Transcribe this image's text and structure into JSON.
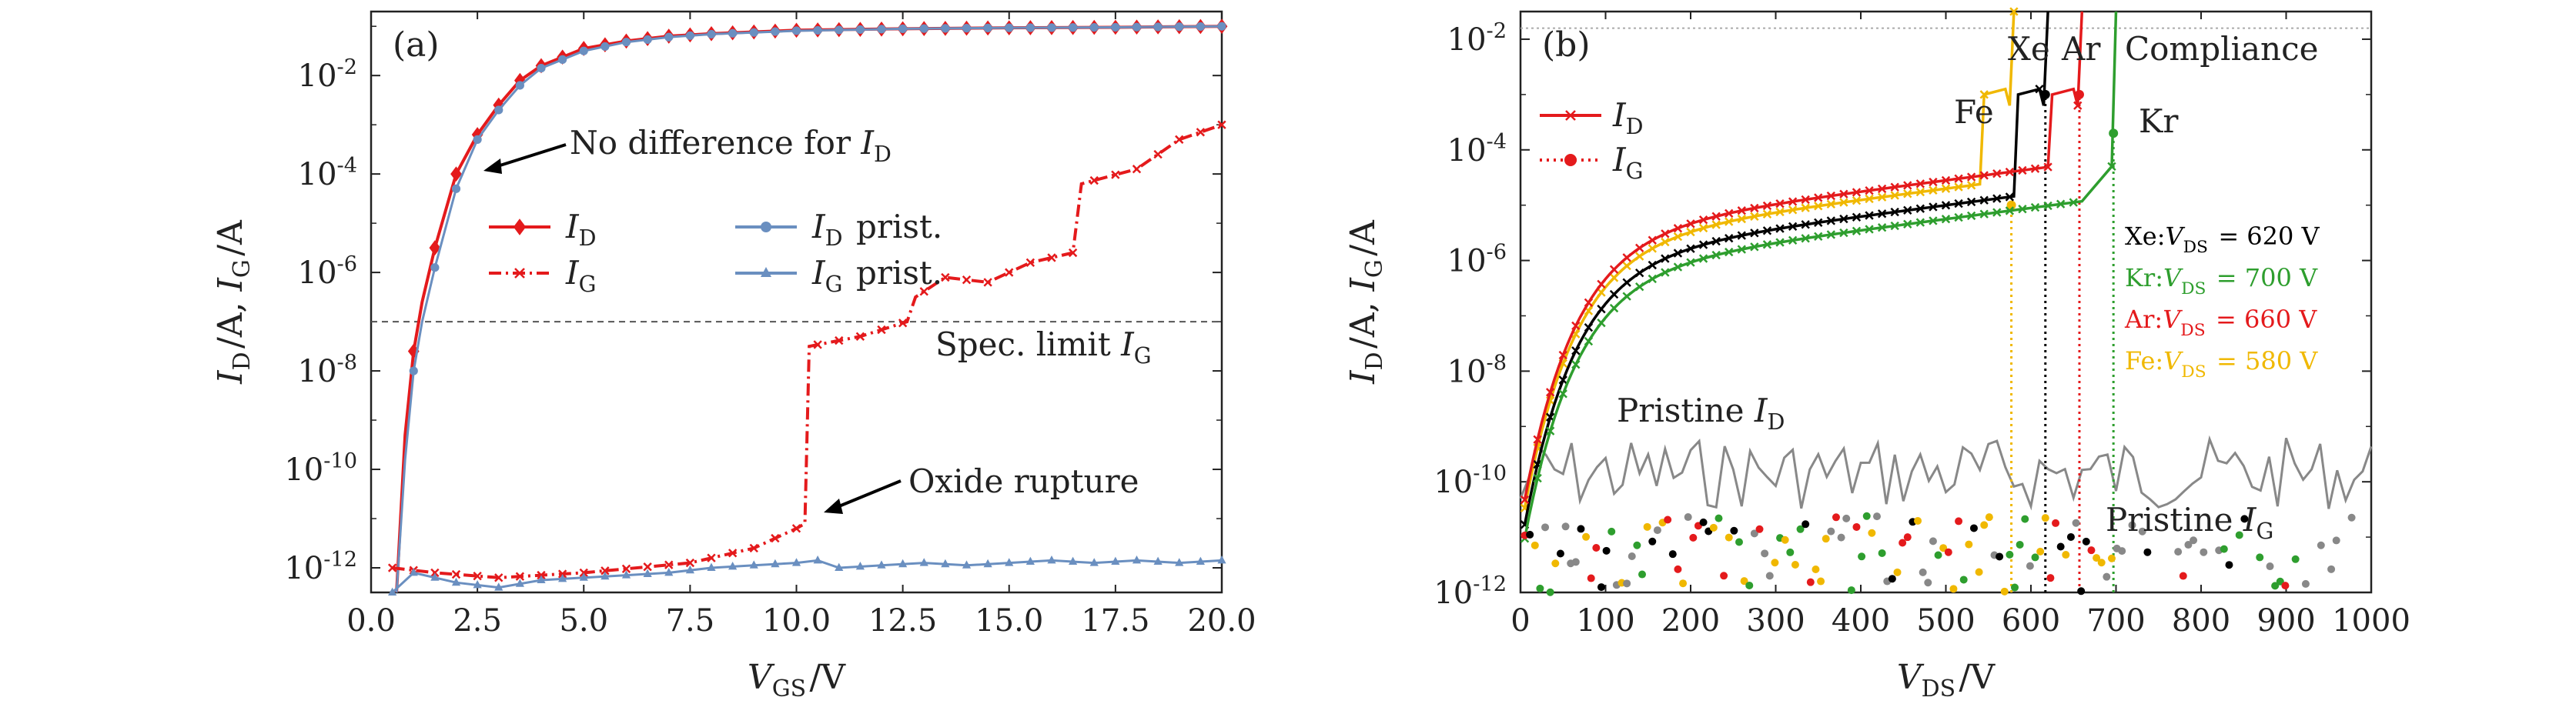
{
  "colors": {
    "red": "#e41a1c",
    "blue": "#6a8fc0",
    "black": "#000000",
    "green": "#2e9e2e",
    "gold": "#f0b800",
    "gray": "#888888",
    "darkgray": "#444444"
  },
  "chart_data": [
    {
      "panel": "(a)",
      "type": "line",
      "xlabel": "V_GS/V",
      "ylabel": "I_D/A, I_G/A",
      "xlim": [
        0,
        20
      ],
      "ylim_log10": [
        -12.5,
        -0.7
      ],
      "yscale": "log",
      "x_ticks": [
        "0.0",
        "2.5",
        "5.0",
        "7.5",
        "10.0",
        "12.5",
        "15.0",
        "17.5",
        "20.0"
      ],
      "y_ticks": [
        "10^-2",
        "10^-4",
        "10^-6",
        "10^-8",
        "10^-10",
        "10^-12"
      ],
      "series": [
        {
          "name": "I_D",
          "color": "red",
          "style": "solid",
          "marker": "diamond",
          "points": [
            [
              0.6,
              -12.5
            ],
            [
              0.8,
              -9.3
            ],
            [
              1.0,
              -7.6
            ],
            [
              1.2,
              -6.6
            ],
            [
              1.5,
              -5.5
            ],
            [
              2.0,
              -4.0
            ],
            [
              2.5,
              -3.2
            ],
            [
              3.0,
              -2.6
            ],
            [
              3.5,
              -2.1
            ],
            [
              4.0,
              -1.8
            ],
            [
              5.0,
              -1.45
            ],
            [
              6.0,
              -1.3
            ],
            [
              7.0,
              -1.2
            ],
            [
              8.0,
              -1.15
            ],
            [
              10.0,
              -1.08
            ],
            [
              12.5,
              -1.05
            ],
            [
              15.0,
              -1.03
            ],
            [
              17.5,
              -1.02
            ],
            [
              20.0,
              -1.0
            ]
          ]
        },
        {
          "name": "I_D prist.",
          "color": "blue",
          "style": "solid",
          "marker": "circle",
          "points": [
            [
              0.6,
              -12.5
            ],
            [
              0.8,
              -9.8
            ],
            [
              1.0,
              -8.0
            ],
            [
              1.2,
              -7.0
            ],
            [
              1.5,
              -5.9
            ],
            [
              2.0,
              -4.3
            ],
            [
              2.5,
              -3.3
            ],
            [
              3.0,
              -2.7
            ],
            [
              3.5,
              -2.2
            ],
            [
              4.0,
              -1.85
            ],
            [
              5.0,
              -1.5
            ],
            [
              6.0,
              -1.32
            ],
            [
              7.0,
              -1.22
            ],
            [
              8.0,
              -1.16
            ],
            [
              10.0,
              -1.09
            ],
            [
              12.5,
              -1.05
            ],
            [
              15.0,
              -1.03
            ],
            [
              17.5,
              -1.02
            ],
            [
              20.0,
              -1.0
            ]
          ]
        },
        {
          "name": "I_G",
          "color": "red",
          "style": "dashdot",
          "marker": "x",
          "points": [
            [
              0.5,
              -12.0
            ],
            [
              1.5,
              -12.1
            ],
            [
              3.0,
              -12.2
            ],
            [
              5.0,
              -12.1
            ],
            [
              7.5,
              -11.9
            ],
            [
              9.0,
              -11.6
            ],
            [
              10.0,
              -11.2
            ],
            [
              10.2,
              -11.1
            ],
            [
              10.3,
              -7.5
            ],
            [
              11.5,
              -7.3
            ],
            [
              12.6,
              -7.0
            ],
            [
              12.8,
              -6.5
            ],
            [
              13.5,
              -6.1
            ],
            [
              14.5,
              -6.2
            ],
            [
              15.5,
              -5.8
            ],
            [
              16.5,
              -5.6
            ],
            [
              16.7,
              -4.2
            ],
            [
              18.0,
              -3.9
            ],
            [
              19.0,
              -3.3
            ],
            [
              20.0,
              -3.0
            ]
          ]
        },
        {
          "name": "I_G prist.",
          "color": "blue",
          "style": "solid",
          "marker": "triangle",
          "points": [
            [
              0.5,
              -12.5
            ],
            [
              1.0,
              -12.1
            ],
            [
              2.0,
              -12.3
            ],
            [
              3.0,
              -12.4
            ],
            [
              4.0,
              -12.25
            ],
            [
              5.0,
              -12.2
            ],
            [
              6.0,
              -12.15
            ],
            [
              7.0,
              -12.1
            ],
            [
              8.0,
              -12.0
            ],
            [
              9.0,
              -11.95
            ],
            [
              10.0,
              -11.9
            ],
            [
              10.5,
              -11.85
            ],
            [
              11.0,
              -12.0
            ],
            [
              12.0,
              -11.95
            ],
            [
              13.0,
              -11.9
            ],
            [
              14.0,
              -11.95
            ],
            [
              15.0,
              -11.9
            ],
            [
              16.0,
              -11.85
            ],
            [
              17.0,
              -11.9
            ],
            [
              18.0,
              -11.85
            ],
            [
              19.0,
              -11.9
            ],
            [
              20.0,
              -11.85
            ]
          ]
        }
      ],
      "spec_limit_log10": -7.0,
      "legend": [
        "I_D",
        "I_D prist.",
        "I_G",
        "I_G prist."
      ],
      "annotations": [
        "No difference for I_D",
        "Spec. limit I_G",
        "Oxide rupture"
      ]
    },
    {
      "panel": "(b)",
      "type": "line",
      "xlabel": "V_DS/V",
      "ylabel": "I_D/A, I_G/A",
      "xlim": [
        0,
        1000
      ],
      "ylim_log10": [
        -12,
        -1.5
      ],
      "yscale": "log",
      "x_ticks": [
        "0",
        "100",
        "200",
        "300",
        "400",
        "500",
        "600",
        "700",
        "800",
        "900",
        "1000"
      ],
      "y_ticks": [
        "10^-2",
        "10^-4",
        "10^-6",
        "10^-8",
        "10^-10",
        "10^-12"
      ],
      "compliance_log10": -1.3,
      "series": [
        {
          "name": "Xe",
          "color": "black",
          "breakdown_V": 620
        },
        {
          "name": "Kr",
          "color": "green",
          "breakdown_V": 700
        },
        {
          "name": "Ar",
          "color": "red",
          "breakdown_V": 660
        },
        {
          "name": "Fe",
          "color": "gold",
          "breakdown_V": 580
        },
        {
          "name": "Pristine I_D",
          "color": "gray"
        },
        {
          "name": "Pristine I_G",
          "color": "gray"
        }
      ],
      "legend": [
        "I_D",
        "I_G"
      ],
      "annotations": [
        "Xe",
        "Ar",
        "Compliance",
        "Fe",
        "Kr",
        "Pristine I_D",
        "Pristine I_G",
        "Xe:V_DS = 620 V",
        "Kr:V_DS = 700 V",
        "Ar:V_DS = 660 V",
        "Fe:V_DS = 580 V"
      ]
    }
  ]
}
